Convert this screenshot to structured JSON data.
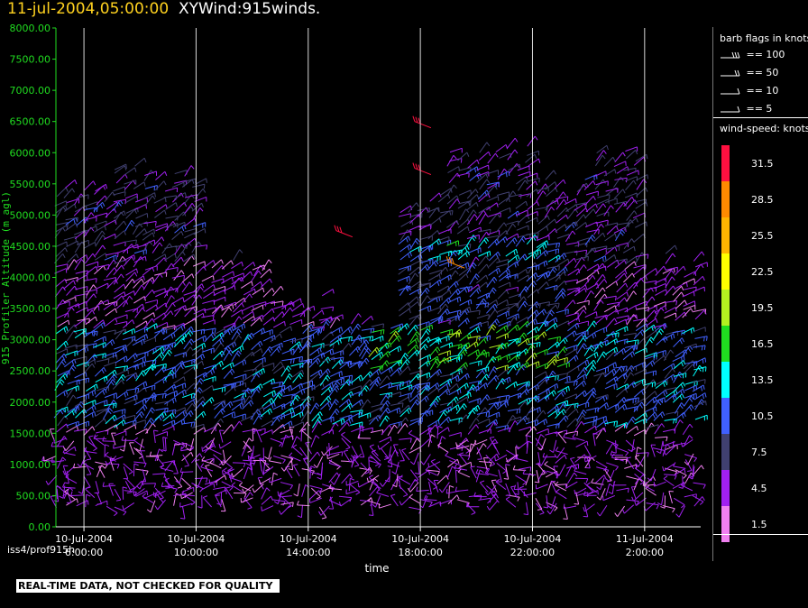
{
  "header": {
    "timestamp": "11-jul-2004,05:00:00",
    "dataset": "XYWind:915winds."
  },
  "chart_data": {
    "type": "scatter",
    "ylabel": "915 Profiler Altitude (m agl)",
    "xlabel": "time",
    "ylim": [
      0,
      8000
    ],
    "yticks": [
      "8000.00",
      "7500.00",
      "7000.00",
      "6500.00",
      "6000.00",
      "5500.00",
      "5000.00",
      "4500.00",
      "4000.00",
      "3500.00",
      "3000.00",
      "2500.00",
      "2000.00",
      "1500.00",
      "1000.00",
      "500.00",
      "0.00"
    ],
    "xticks": [
      {
        "date": "10-Jul-2004",
        "time": "6:00:00"
      },
      {
        "date": "10-Jul-2004",
        "time": "10:00:00"
      },
      {
        "date": "10-Jul-2004",
        "time": "14:00:00"
      },
      {
        "date": "10-Jul-2004",
        "time": "18:00:00"
      },
      {
        "date": "10-Jul-2004",
        "time": "22:00:00"
      },
      {
        "date": "11-Jul-2004",
        "time": "2:00:00"
      }
    ],
    "xrange_hours": [
      5,
      28
    ],
    "grid": "vertical",
    "speed_colors": [
      {
        "label": "31.5",
        "color": "#ff1040"
      },
      {
        "label": "28.5",
        "color": "#ff8a00"
      },
      {
        "label": "25.5",
        "color": "#ffb400"
      },
      {
        "label": "22.5",
        "color": "#ffff00"
      },
      {
        "label": "19.5",
        "color": "#b4f020"
      },
      {
        "label": "16.5",
        "color": "#20dd20"
      },
      {
        "label": "13.5",
        "color": "#00ffff"
      },
      {
        "label": "10.5",
        "color": "#4060ff"
      },
      {
        "label": "7.5",
        "color": "#404070"
      },
      {
        "label": "4.5",
        "color": "#a020f0"
      },
      {
        "label": "1.5",
        "color": "#f080f0"
      }
    ]
  },
  "legend": {
    "barb_title": "barb flags in knots",
    "barbs": [
      {
        "label": "== 100"
      },
      {
        "label": "== 50"
      },
      {
        "label": "== 10"
      },
      {
        "label": "== 5"
      }
    ],
    "speed_title": "wind-speed: knots"
  },
  "footer": {
    "source": "iss4/prof915h",
    "disclaimer": "REAL-TIME DATA, NOT CHECKED FOR QUALITY"
  }
}
